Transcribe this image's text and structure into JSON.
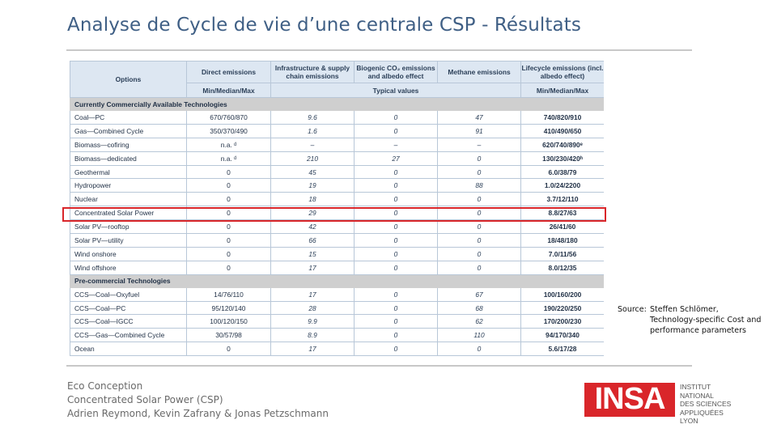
{
  "slide": {
    "title": "Analyse de Cycle de vie d’une centrale CSP - Résultats"
  },
  "table": {
    "header": {
      "options": "Options",
      "direct": "Direct emissions",
      "infra": "Infrastructure & supply chain emissions",
      "biogenic": "Biogenic CO₂ emissions and albedo effect",
      "methane": "Methane emissions",
      "lifecycle": "Lifecycle emissions (incl. albedo effect)",
      "minmax": "Min/Median/Max",
      "typical": "Typical values",
      "minmax2": "Min/Median/Max"
    },
    "sections": [
      {
        "title": "Currently Commercially Available Technologies",
        "rows": [
          [
            "Coal—PC",
            "670/760/870",
            "9.6",
            "0",
            "47",
            "740/820/910"
          ],
          [
            "Gas—Combined Cycle",
            "350/370/490",
            "1.6",
            "0",
            "91",
            "410/490/650"
          ],
          [
            "Biomass—cofiring",
            "n.a. ᵈ",
            "–",
            "–",
            "–",
            "620/740/890ᵉ"
          ],
          [
            "Biomass—dedicated",
            "n.a. ᵈ",
            "210",
            "27",
            "0",
            "130/230/420ʰ"
          ],
          [
            "Geothermal",
            "0",
            "45",
            "0",
            "0",
            "6.0/38/79"
          ],
          [
            "Hydropower",
            "0",
            "19",
            "0",
            "88",
            "1.0/24/2200"
          ],
          [
            "Nuclear",
            "0",
            "18",
            "0",
            "0",
            "3.7/12/110"
          ],
          [
            "Concentrated Solar Power",
            "0",
            "29",
            "0",
            "0",
            "8.8/27/63"
          ],
          [
            "Solar PV—rooftop",
            "0",
            "42",
            "0",
            "0",
            "26/41/60"
          ],
          [
            "Solar PV—utility",
            "0",
            "66",
            "0",
            "0",
            "18/48/180"
          ],
          [
            "Wind onshore",
            "0",
            "15",
            "0",
            "0",
            "7.0/11/56"
          ],
          [
            "Wind offshore",
            "0",
            "17",
            "0",
            "0",
            "8.0/12/35"
          ]
        ]
      },
      {
        "title": "Pre-commercial Technologies",
        "rows": [
          [
            "CCS—Coal—Oxyfuel",
            "14/76/110",
            "17",
            "0",
            "67",
            "100/160/200"
          ],
          [
            "CCS—Coal—PC",
            "95/120/140",
            "28",
            "0",
            "68",
            "190/220/250"
          ],
          [
            "CCS—Coal—IGCC",
            "100/120/150",
            "9.9",
            "0",
            "62",
            "170/200/230"
          ],
          [
            "CCS—Gas—Combined Cycle",
            "30/57/98",
            "8.9",
            "0",
            "110",
            "94/170/340"
          ],
          [
            "Ocean",
            "0",
            "17",
            "0",
            "0",
            "5.6/17/28"
          ]
        ]
      }
    ]
  },
  "source": {
    "label": "Source:",
    "line1": "Steffen Schlömer,",
    "line2": "Technology-specific Cost and",
    "line3": "performance parameters"
  },
  "footer": {
    "line1": "Eco Conception",
    "line2": "Concentrated Solar Power (CSP)",
    "line3": "Adrien Reymond, Kevin Zafrany & Jonas Petzschmann"
  },
  "logo": {
    "word": "INSA",
    "line1": "INSTITUT NATIONAL",
    "line2": "DES SCIENCES",
    "line3": "APPLIQUÉES",
    "line4": "LYON"
  },
  "colors": {
    "title": "#3f5f85",
    "highlight": "#d9262a",
    "header_bg": "#dde7f2",
    "section_bg": "#cfcfcf",
    "logo_red": "#d9262a"
  }
}
